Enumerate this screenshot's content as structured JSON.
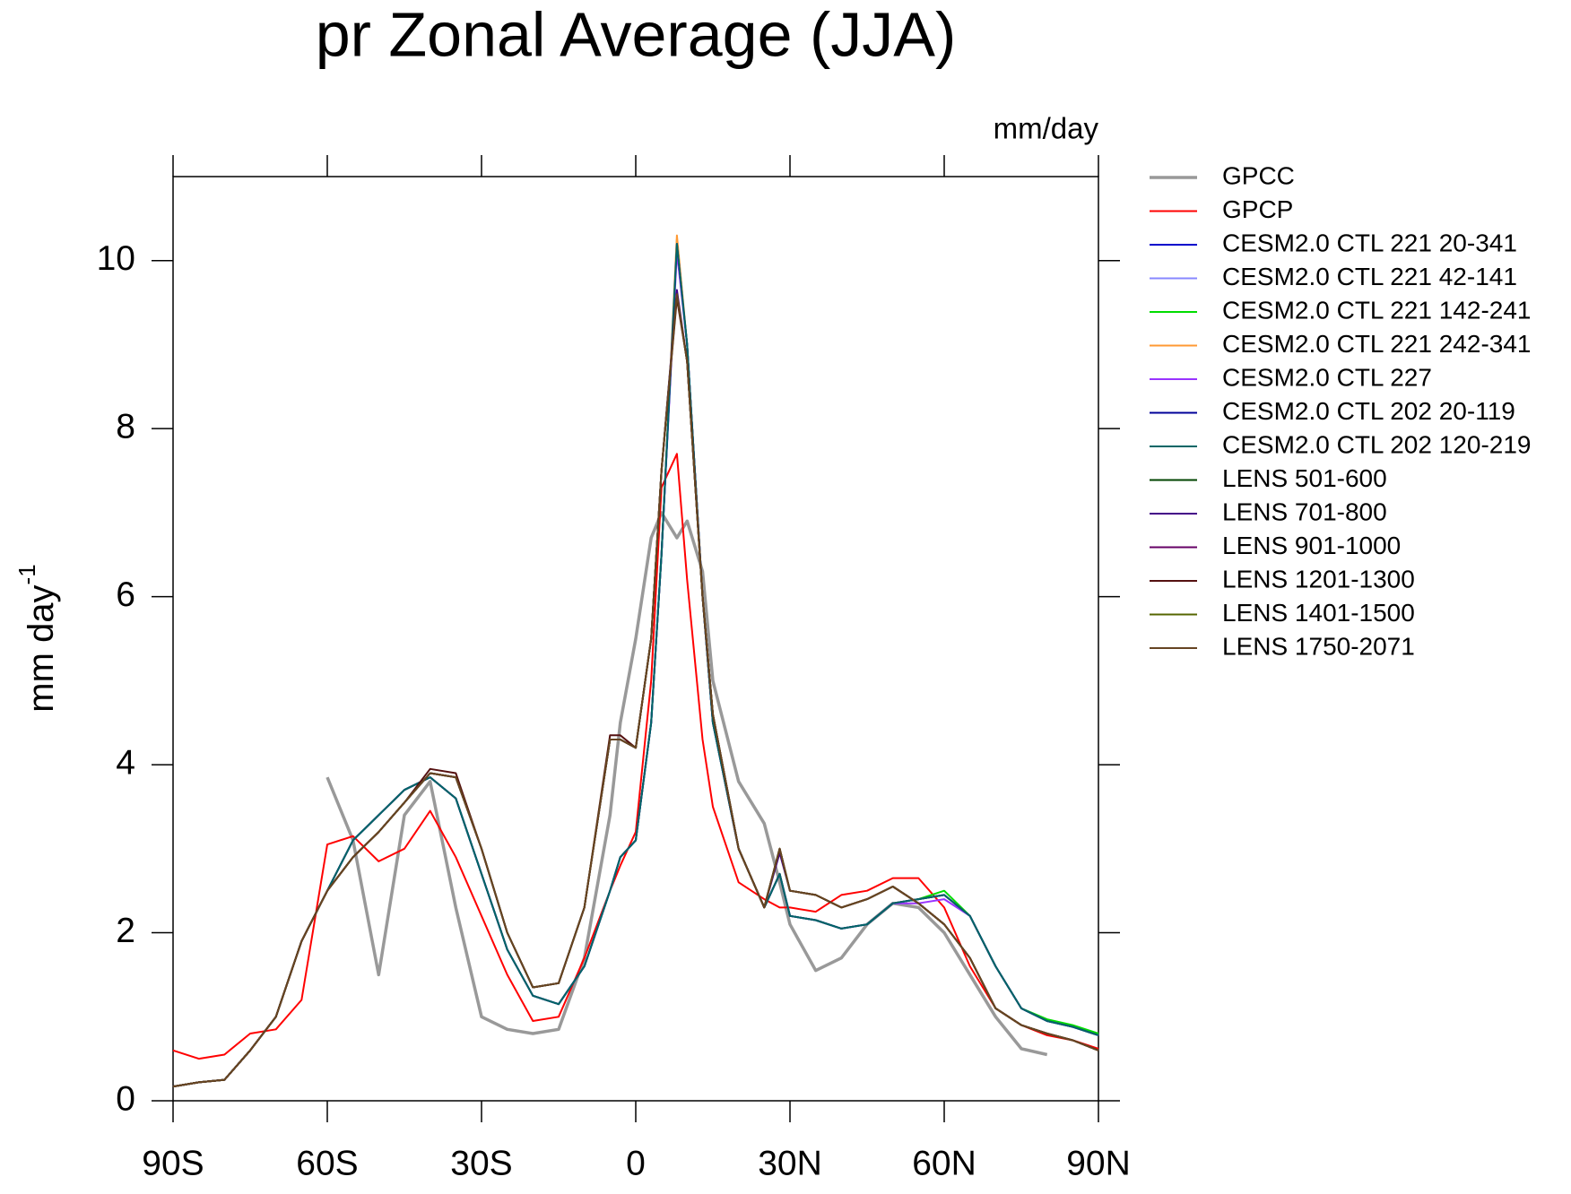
{
  "chart_data": {
    "type": "line",
    "title": "pr Zonal Average (JJA)",
    "units": "mm/day",
    "y_label": "mm day",
    "y_label_superscript": "-1",
    "x": [
      -90,
      -85,
      -80,
      -75,
      -70,
      -65,
      -60,
      -55,
      -50,
      -45,
      -40,
      -35,
      -30,
      -25,
      -20,
      -15,
      -10,
      -5,
      -3,
      0,
      3,
      5,
      8,
      10,
      13,
      15,
      20,
      25,
      28,
      30,
      35,
      40,
      45,
      50,
      55,
      60,
      65,
      70,
      75,
      80,
      85,
      90
    ],
    "xlim": [
      -90,
      90
    ],
    "xticks": [
      {
        "value": -90,
        "label": "90S"
      },
      {
        "value": -60,
        "label": "60S"
      },
      {
        "value": -30,
        "label": "30S"
      },
      0,
      {
        "value": 30,
        "label": "30N"
      },
      {
        "value": 60,
        "label": "60N"
      },
      {
        "value": 90,
        "label": "90N"
      }
    ],
    "ylim": [
      0,
      11
    ],
    "yticks": [
      0,
      2,
      4,
      6,
      8,
      10
    ],
    "grid": false,
    "series": [
      {
        "name": "GPCC",
        "color": "#999999",
        "values": [
          null,
          null,
          null,
          null,
          null,
          null,
          3.85,
          3.1,
          1.5,
          3.4,
          3.8,
          2.3,
          1.0,
          0.85,
          0.8,
          0.85,
          1.7,
          3.4,
          4.5,
          5.5,
          6.7,
          7.0,
          6.7,
          6.9,
          6.3,
          5.0,
          3.8,
          3.3,
          2.6,
          2.1,
          1.55,
          1.7,
          2.1,
          2.35,
          2.3,
          2.0,
          1.5,
          1.0,
          0.62,
          0.55,
          null,
          null
        ]
      },
      {
        "name": "GPCP",
        "color": "#ff0000",
        "values": [
          0.6,
          0.5,
          0.55,
          0.8,
          0.85,
          1.2,
          3.05,
          3.15,
          2.85,
          3.0,
          3.45,
          2.9,
          2.2,
          1.5,
          0.95,
          1.0,
          1.7,
          2.5,
          2.8,
          3.2,
          5.0,
          7.3,
          7.7,
          6.2,
          4.3,
          3.5,
          2.6,
          2.4,
          2.3,
          2.3,
          2.25,
          2.45,
          2.5,
          2.65,
          2.65,
          2.3,
          1.6,
          1.1,
          0.9,
          0.78,
          0.72,
          0.62
        ]
      },
      {
        "name": "CESM2.0 CTL 221 20-341",
        "color": "#0000cc",
        "values": [
          0.17,
          0.22,
          0.25,
          0.6,
          1.0,
          1.9,
          2.5,
          3.1,
          3.4,
          3.7,
          3.85,
          3.6,
          2.7,
          1.8,
          1.25,
          1.15,
          1.6,
          2.5,
          2.9,
          3.1,
          4.5,
          6.5,
          10.2,
          9.0,
          6.0,
          4.5,
          3.0,
          2.3,
          2.7,
          2.2,
          2.15,
          2.05,
          2.1,
          2.35,
          2.4,
          2.45,
          2.2,
          1.6,
          1.1,
          0.95,
          0.88,
          0.78
        ]
      },
      {
        "name": "CESM2.0 CTL 221 42-141",
        "color": "#8888ff",
        "values": [
          0.17,
          0.22,
          0.25,
          0.6,
          1.0,
          1.9,
          2.5,
          3.1,
          3.4,
          3.7,
          3.85,
          3.6,
          2.7,
          1.8,
          1.25,
          1.15,
          1.6,
          2.5,
          2.9,
          3.1,
          4.5,
          6.5,
          10.15,
          9.0,
          6.0,
          4.5,
          3.0,
          2.3,
          2.7,
          2.2,
          2.15,
          2.05,
          2.1,
          2.35,
          2.4,
          2.45,
          2.2,
          1.6,
          1.1,
          0.95,
          0.88,
          0.78
        ]
      },
      {
        "name": "CESM2.0 CTL 221 142-241",
        "color": "#00dd00",
        "values": [
          0.17,
          0.22,
          0.25,
          0.6,
          1.0,
          1.9,
          2.5,
          3.1,
          3.4,
          3.7,
          3.85,
          3.6,
          2.7,
          1.8,
          1.25,
          1.15,
          1.6,
          2.5,
          2.9,
          3.1,
          4.5,
          6.5,
          10.25,
          9.0,
          6.0,
          4.5,
          3.0,
          2.3,
          2.7,
          2.2,
          2.15,
          2.05,
          2.1,
          2.35,
          2.4,
          2.5,
          2.2,
          1.6,
          1.1,
          0.97,
          0.9,
          0.8
        ]
      },
      {
        "name": "CESM2.0 CTL 221 242-341",
        "color": "#ff9933",
        "values": [
          0.17,
          0.22,
          0.25,
          0.6,
          1.0,
          1.9,
          2.5,
          3.1,
          3.4,
          3.7,
          3.85,
          3.6,
          2.7,
          1.8,
          1.25,
          1.15,
          1.6,
          2.5,
          2.9,
          3.1,
          4.5,
          6.5,
          10.3,
          9.0,
          6.0,
          4.5,
          3.0,
          2.3,
          2.7,
          2.2,
          2.15,
          2.05,
          2.1,
          2.35,
          2.4,
          2.45,
          2.2,
          1.6,
          1.1,
          0.95,
          0.88,
          0.78
        ]
      },
      {
        "name": "CESM2.0 CTL 227",
        "color": "#9933ff",
        "values": [
          0.17,
          0.22,
          0.25,
          0.6,
          1.0,
          1.9,
          2.5,
          3.1,
          3.4,
          3.7,
          3.85,
          3.6,
          2.7,
          1.8,
          1.25,
          1.15,
          1.6,
          2.5,
          2.9,
          3.1,
          4.5,
          6.5,
          10.1,
          9.0,
          6.0,
          4.5,
          3.0,
          2.3,
          2.7,
          2.2,
          2.15,
          2.05,
          2.1,
          2.35,
          2.35,
          2.4,
          2.2,
          1.6,
          1.1,
          0.95,
          0.88,
          0.78
        ]
      },
      {
        "name": "CESM2.0 CTL 202 20-119",
        "color": "#000099",
        "values": [
          0.17,
          0.22,
          0.25,
          0.6,
          1.0,
          1.9,
          2.5,
          3.1,
          3.4,
          3.7,
          3.85,
          3.6,
          2.7,
          1.8,
          1.25,
          1.15,
          1.6,
          2.5,
          2.9,
          3.1,
          4.5,
          6.5,
          10.2,
          9.0,
          6.0,
          4.5,
          3.0,
          2.3,
          2.7,
          2.2,
          2.15,
          2.05,
          2.1,
          2.35,
          2.4,
          2.45,
          2.2,
          1.6,
          1.1,
          0.95,
          0.88,
          0.78
        ]
      },
      {
        "name": "CESM2.0 CTL 202 120-219",
        "color": "#006666",
        "values": [
          0.17,
          0.22,
          0.25,
          0.6,
          1.0,
          1.9,
          2.5,
          3.1,
          3.4,
          3.7,
          3.85,
          3.6,
          2.7,
          1.8,
          1.25,
          1.15,
          1.6,
          2.5,
          2.9,
          3.1,
          4.5,
          6.5,
          10.2,
          9.0,
          6.0,
          4.5,
          3.0,
          2.3,
          2.7,
          2.2,
          2.15,
          2.05,
          2.1,
          2.35,
          2.4,
          2.45,
          2.2,
          1.6,
          1.1,
          0.95,
          0.88,
          0.78
        ]
      },
      {
        "name": "LENS 501-600",
        "color": "#004400",
        "values": [
          0.17,
          0.22,
          0.25,
          0.6,
          1.0,
          1.9,
          2.5,
          2.9,
          3.2,
          3.55,
          3.9,
          3.85,
          3.0,
          2.0,
          1.35,
          1.4,
          2.3,
          4.3,
          4.3,
          4.2,
          5.5,
          7.5,
          9.6,
          8.8,
          6.0,
          4.6,
          3.0,
          2.3,
          3.0,
          2.5,
          2.45,
          2.3,
          2.4,
          2.55,
          2.35,
          2.1,
          1.7,
          1.1,
          0.9,
          0.8,
          0.72,
          0.6
        ]
      },
      {
        "name": "LENS 701-800",
        "color": "#440088",
        "values": [
          0.17,
          0.22,
          0.25,
          0.6,
          1.0,
          1.9,
          2.5,
          2.9,
          3.2,
          3.55,
          3.9,
          3.85,
          3.0,
          2.0,
          1.35,
          1.4,
          2.3,
          4.3,
          4.3,
          4.2,
          5.5,
          7.5,
          9.65,
          8.8,
          6.0,
          4.6,
          3.0,
          2.3,
          2.95,
          2.5,
          2.45,
          2.3,
          2.4,
          2.55,
          2.35,
          2.1,
          1.7,
          1.1,
          0.9,
          0.8,
          0.72,
          0.6
        ]
      },
      {
        "name": "LENS 901-1000",
        "color": "#660066",
        "values": [
          0.17,
          0.22,
          0.25,
          0.6,
          1.0,
          1.9,
          2.5,
          2.9,
          3.2,
          3.55,
          3.9,
          3.85,
          3.0,
          2.0,
          1.35,
          1.4,
          2.3,
          4.3,
          4.3,
          4.2,
          5.5,
          7.5,
          9.6,
          8.8,
          6.0,
          4.6,
          3.0,
          2.3,
          3.0,
          2.5,
          2.45,
          2.3,
          2.4,
          2.55,
          2.35,
          2.1,
          1.7,
          1.1,
          0.9,
          0.8,
          0.72,
          0.6
        ]
      },
      {
        "name": "LENS 1201-1300",
        "color": "#551111",
        "values": [
          0.17,
          0.22,
          0.25,
          0.6,
          1.0,
          1.9,
          2.5,
          2.9,
          3.2,
          3.55,
          3.95,
          3.9,
          3.0,
          2.0,
          1.35,
          1.4,
          2.3,
          4.35,
          4.35,
          4.2,
          5.5,
          7.5,
          9.55,
          8.8,
          6.0,
          4.6,
          3.0,
          2.3,
          3.0,
          2.5,
          2.45,
          2.3,
          2.4,
          2.55,
          2.35,
          2.1,
          1.7,
          1.1,
          0.9,
          0.8,
          0.72,
          0.6
        ]
      },
      {
        "name": "LENS 1401-1500",
        "color": "#556600",
        "values": [
          0.17,
          0.22,
          0.25,
          0.6,
          1.0,
          1.9,
          2.5,
          2.9,
          3.2,
          3.55,
          3.9,
          3.85,
          3.0,
          2.0,
          1.35,
          1.4,
          2.3,
          4.3,
          4.3,
          4.2,
          5.5,
          7.5,
          9.6,
          8.8,
          6.0,
          4.6,
          3.0,
          2.3,
          3.0,
          2.5,
          2.45,
          2.3,
          2.4,
          2.55,
          2.35,
          2.1,
          1.7,
          1.1,
          0.9,
          0.8,
          0.72,
          0.6
        ]
      },
      {
        "name": "LENS 1750-2071",
        "color": "#664422",
        "values": [
          0.17,
          0.22,
          0.25,
          0.6,
          1.0,
          1.9,
          2.5,
          2.9,
          3.2,
          3.55,
          3.9,
          3.85,
          3.0,
          2.0,
          1.35,
          1.4,
          2.3,
          4.3,
          4.3,
          4.2,
          5.5,
          7.5,
          9.6,
          8.8,
          6.0,
          4.6,
          3.0,
          2.3,
          3.0,
          2.5,
          2.45,
          2.3,
          2.4,
          2.55,
          2.35,
          2.1,
          1.7,
          1.1,
          0.9,
          0.8,
          0.72,
          0.6
        ]
      }
    ]
  }
}
